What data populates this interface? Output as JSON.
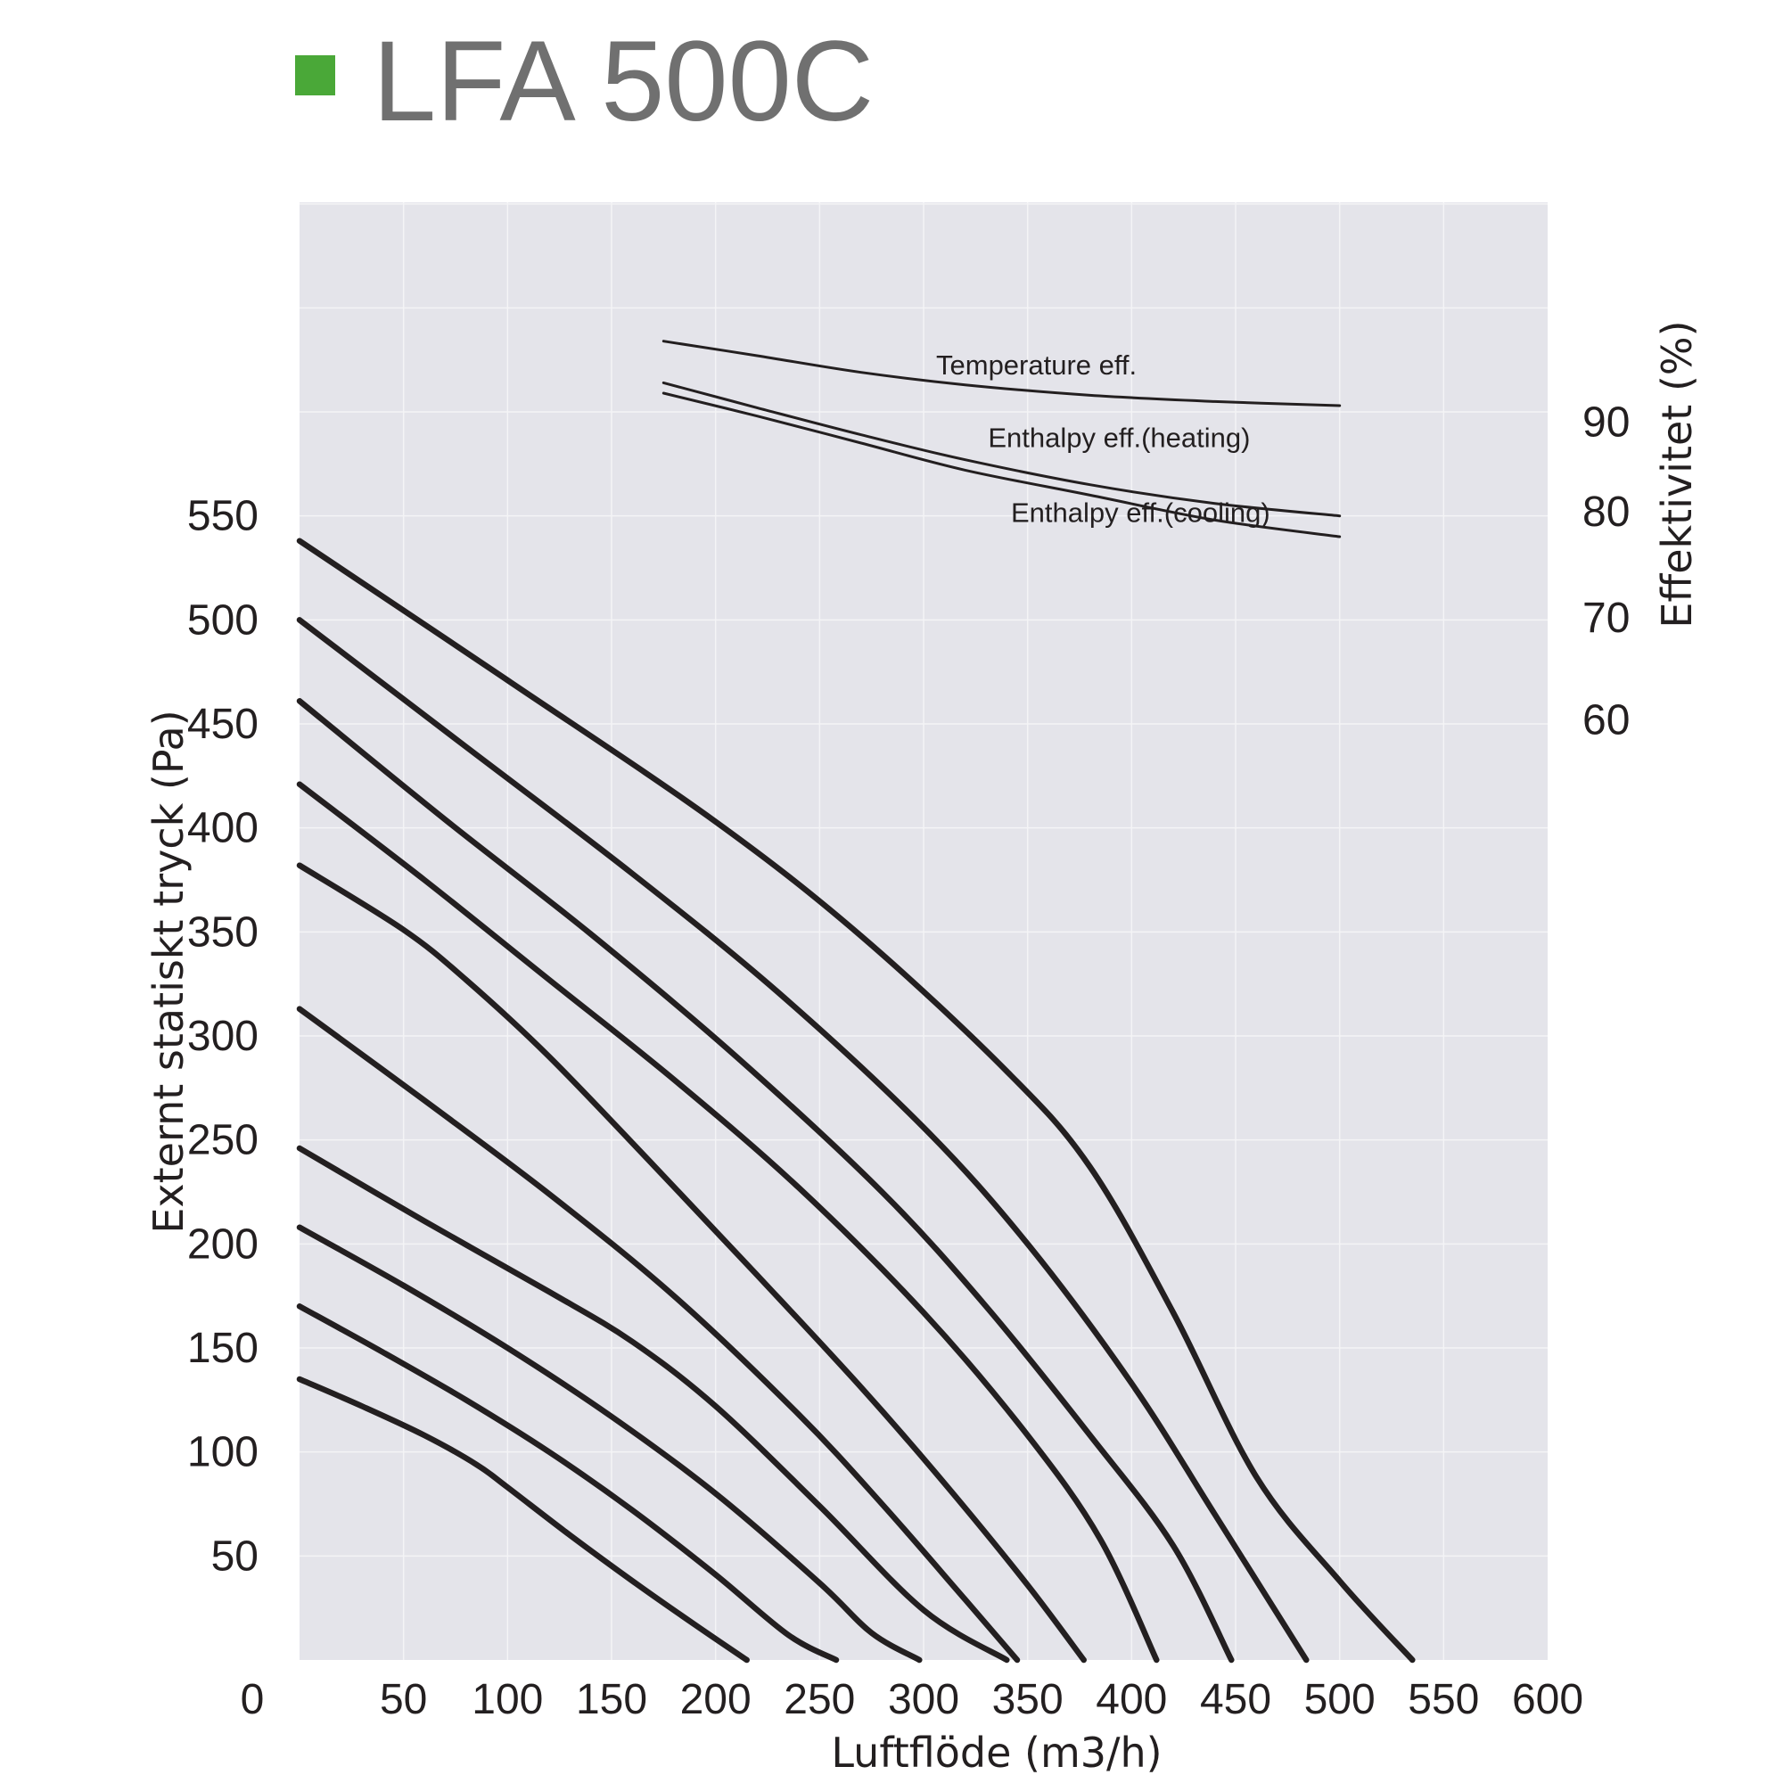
{
  "chart_data": {
    "type": "line",
    "title": "LFA 500C",
    "legend_color": "#4aa838",
    "background_color": "#e4e4ea",
    "curve_color": "#231f20",
    "grid": true,
    "xlabel": "Luftflöde (m3/h)",
    "ylabel": "Externt statiskt tryck (Pa)",
    "y2label": "Effektivitet (%)",
    "xlim": [
      0,
      600
    ],
    "ylim": [
      0,
      700
    ],
    "y2_ticks": [
      {
        "label": "90",
        "pressure_equiv": 595
      },
      {
        "label": "80",
        "pressure_equiv": 552
      },
      {
        "label": "70",
        "pressure_equiv": 501
      },
      {
        "label": "60",
        "pressure_equiv": 452
      }
    ],
    "x_ticks": [
      "0",
      "50",
      "100",
      "150",
      "200",
      "250",
      "300",
      "350",
      "400",
      "450",
      "500",
      "550",
      "600"
    ],
    "y_ticks": [
      "50",
      "100",
      "150",
      "200",
      "250",
      "300",
      "350",
      "400",
      "450",
      "500",
      "550"
    ],
    "fan_curves": [
      {
        "points": [
          [
            0,
            135
          ],
          [
            30,
            122
          ],
          [
            60,
            108
          ],
          [
            85,
            94
          ],
          [
            100,
            83
          ],
          [
            130,
            60
          ],
          [
            160,
            38
          ],
          [
            190,
            17
          ],
          [
            215,
            0
          ]
        ]
      },
      {
        "points": [
          [
            0,
            170
          ],
          [
            40,
            148
          ],
          [
            80,
            125
          ],
          [
            120,
            100
          ],
          [
            160,
            72
          ],
          [
            200,
            41
          ],
          [
            235,
            12
          ],
          [
            258,
            0
          ]
        ]
      },
      {
        "points": [
          [
            0,
            208
          ],
          [
            50,
            180
          ],
          [
            100,
            150
          ],
          [
            150,
            117
          ],
          [
            200,
            80
          ],
          [
            250,
            37
          ],
          [
            275,
            13
          ],
          [
            298,
            0
          ]
        ]
      },
      {
        "points": [
          [
            0,
            246
          ],
          [
            60,
            211
          ],
          [
            120,
            177
          ],
          [
            160,
            153
          ],
          [
            200,
            122
          ],
          [
            250,
            74
          ],
          [
            300,
            24
          ],
          [
            340,
            0
          ]
        ]
      },
      {
        "points": [
          [
            0,
            313
          ],
          [
            60,
            269
          ],
          [
            120,
            224
          ],
          [
            180,
            175
          ],
          [
            240,
            118
          ],
          [
            280,
            75
          ],
          [
            320,
            29
          ],
          [
            345,
            0
          ]
        ]
      },
      {
        "points": [
          [
            0,
            382
          ],
          [
            50,
            351
          ],
          [
            80,
            327
          ],
          [
            120,
            290
          ],
          [
            170,
            238
          ],
          [
            220,
            185
          ],
          [
            270,
            131
          ],
          [
            310,
            85
          ],
          [
            350,
            36
          ],
          [
            377,
            0
          ]
        ]
      },
      {
        "points": [
          [
            0,
            421
          ],
          [
            60,
            375
          ],
          [
            120,
            327
          ],
          [
            180,
            279
          ],
          [
            240,
            227
          ],
          [
            300,
            167
          ],
          [
            350,
            108
          ],
          [
            385,
            58
          ],
          [
            412,
            0
          ]
        ]
      },
      {
        "points": [
          [
            0,
            461
          ],
          [
            70,
            404
          ],
          [
            140,
            349
          ],
          [
            210,
            290
          ],
          [
            280,
            225
          ],
          [
            330,
            170
          ],
          [
            380,
            108
          ],
          [
            420,
            55
          ],
          [
            448,
            0
          ]
        ]
      },
      {
        "points": [
          [
            0,
            500
          ],
          [
            80,
            439
          ],
          [
            160,
            378
          ],
          [
            230,
            321
          ],
          [
            300,
            256
          ],
          [
            350,
            200
          ],
          [
            400,
            133
          ],
          [
            440,
            70
          ],
          [
            484,
            0
          ]
        ]
      },
      {
        "points": [
          [
            0,
            538
          ],
          [
            100,
            471
          ],
          [
            200,
            403
          ],
          [
            270,
            348
          ],
          [
            340,
            283
          ],
          [
            380,
            237
          ],
          [
            420,
            167
          ],
          [
            460,
            88
          ],
          [
            500,
            38
          ],
          [
            535,
            0
          ]
        ]
      }
    ],
    "efficiency_curves": [
      {
        "name": "Temperature eff.",
        "points": [
          [
            175,
            634
          ],
          [
            220,
            627
          ],
          [
            270,
            619
          ],
          [
            320,
            613
          ],
          [
            380,
            608
          ],
          [
            440,
            605
          ],
          [
            500,
            603
          ]
        ]
      },
      {
        "name": "Enthalpy eff.(heating)",
        "points": [
          [
            175,
            614
          ],
          [
            220,
            602
          ],
          [
            270,
            589
          ],
          [
            320,
            577
          ],
          [
            380,
            565
          ],
          [
            440,
            556
          ],
          [
            500,
            550
          ]
        ]
      },
      {
        "name": "Enthalpy eff.(cooling)",
        "points": [
          [
            175,
            609
          ],
          [
            220,
            598
          ],
          [
            270,
            585
          ],
          [
            320,
            572
          ],
          [
            380,
            560
          ],
          [
            440,
            548
          ],
          [
            500,
            540
          ]
        ]
      }
    ]
  }
}
